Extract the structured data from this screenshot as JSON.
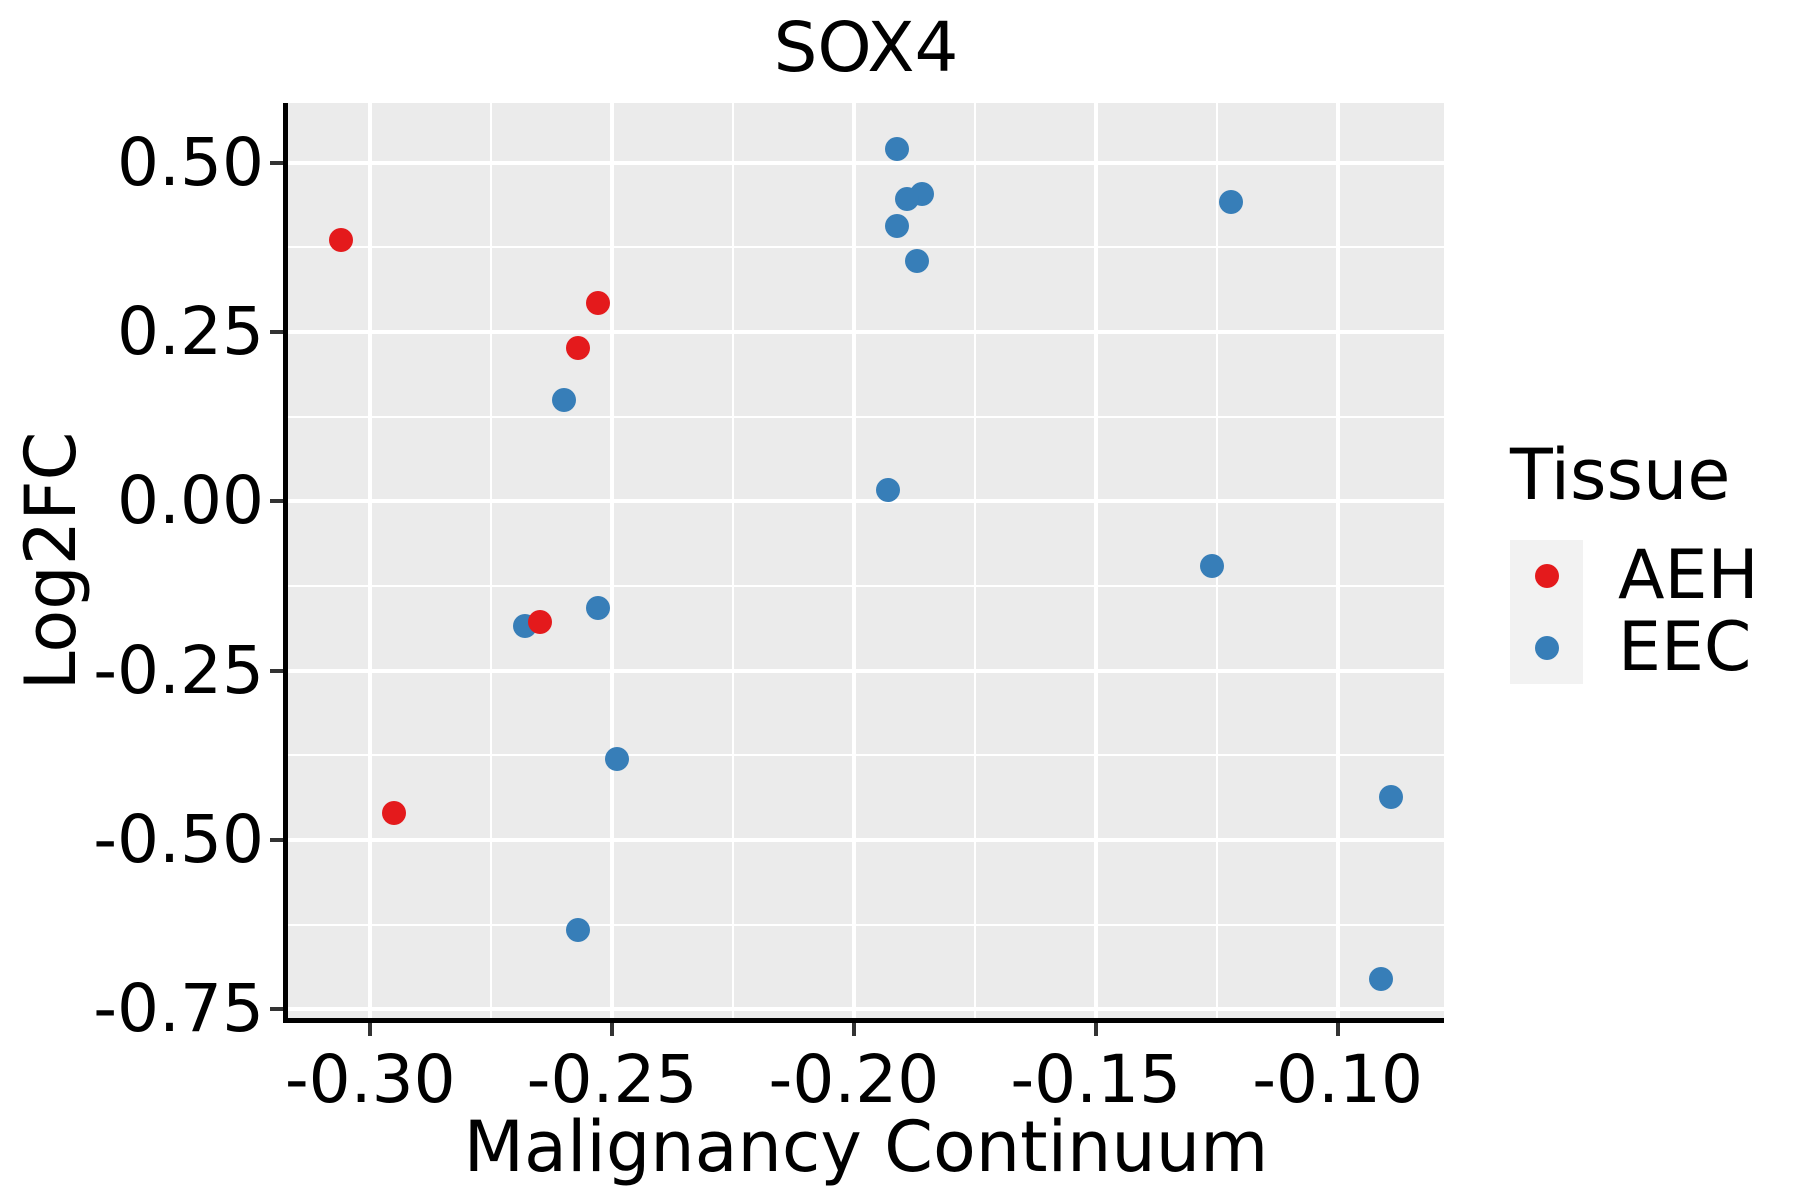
{
  "title": "SOX4",
  "axes": {
    "x": {
      "label": "Malignancy Continuum",
      "range": [
        -0.317,
        -0.078
      ],
      "major_ticks": [
        {
          "value": -0.3,
          "label": "-0.30"
        },
        {
          "value": -0.25,
          "label": "-0.25"
        },
        {
          "value": -0.2,
          "label": "-0.20"
        },
        {
          "value": -0.15,
          "label": "-0.15"
        },
        {
          "value": -0.1,
          "label": "-0.10"
        }
      ],
      "minor_ticks": [
        -0.275,
        -0.225,
        -0.175,
        -0.125
      ]
    },
    "y": {
      "label": "Log2FC",
      "range": [
        -0.766,
        0.588
      ],
      "major_ticks": [
        {
          "value": 0.5,
          "label": "0.50"
        },
        {
          "value": 0.25,
          "label": "0.25"
        },
        {
          "value": 0.0,
          "label": "0.00"
        },
        {
          "value": -0.25,
          "label": "-0.25"
        },
        {
          "value": -0.5,
          "label": "-0.50"
        },
        {
          "value": -0.75,
          "label": "-0.75"
        }
      ],
      "minor_ticks": [
        0.375,
        0.125,
        -0.125,
        -0.375,
        -0.625
      ]
    }
  },
  "legend": {
    "title": "Tissue",
    "entries": [
      {
        "label": "AEH",
        "color": "#E41A1C"
      },
      {
        "label": "EEC",
        "color": "#377EB8"
      }
    ]
  },
  "chart_data": {
    "type": "scatter",
    "title": "SOX4",
    "xlabel": "Malignancy Continuum",
    "ylabel": "Log2FC",
    "xlim": [
      -0.317,
      -0.078
    ],
    "ylim": [
      -0.766,
      0.588
    ],
    "grid": true,
    "legend_title": "Tissue",
    "legend_position": "right",
    "series": [
      {
        "name": "EEC",
        "color": "#377EB8",
        "points": [
          [
            -0.191,
            0.52
          ],
          [
            -0.186,
            0.454
          ],
          [
            -0.189,
            0.446
          ],
          [
            -0.122,
            0.442
          ],
          [
            -0.191,
            0.407
          ],
          [
            -0.187,
            0.355
          ],
          [
            -0.26,
            0.15
          ],
          [
            -0.193,
            0.016
          ],
          [
            -0.126,
            -0.096
          ],
          [
            -0.253,
            -0.158
          ],
          [
            -0.268,
            -0.184
          ],
          [
            -0.249,
            -0.381
          ],
          [
            -0.089,
            -0.437
          ],
          [
            -0.257,
            -0.633
          ],
          [
            -0.091,
            -0.705
          ]
        ]
      },
      {
        "name": "AEH",
        "color": "#E41A1C",
        "points": [
          [
            -0.306,
            0.385
          ],
          [
            -0.253,
            0.292
          ],
          [
            -0.257,
            0.226
          ],
          [
            -0.265,
            -0.178
          ],
          [
            -0.295,
            -0.461
          ]
        ]
      }
    ]
  },
  "style": {
    "panel_bg": "#EBEBEB",
    "grid_color": "#FFFFFF",
    "axis_line_color": "#000000",
    "tick_mark_color": "#333333",
    "legend_key_bg": "#F2F2F2"
  }
}
